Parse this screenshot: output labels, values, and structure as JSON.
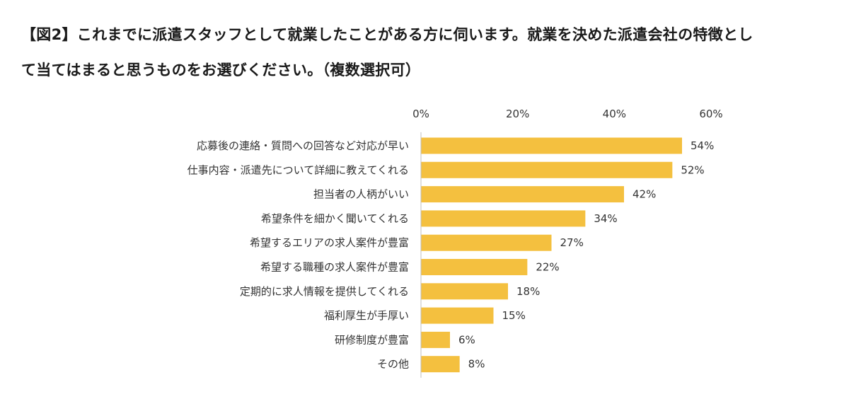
{
  "title": {
    "line1": "【図2】これまでに派遣スタッフとして就業したことがある方に伺います。就業を決めた派遣会社の特徴とし",
    "line2": "て当てはまると思うものをお選びください。（複数選択可）"
  },
  "colors": {
    "bar": "#F4C03F",
    "axis": "#BFBFBF"
  },
  "chart_data": {
    "type": "bar",
    "orientation": "horizontal",
    "categories": [
      "応募後の連絡・質問への回答など対応が早い",
      "仕事内容・派遣先について詳細に教えてくれる",
      "担当者の人柄がいい",
      "希望条件を細かく聞いてくれる",
      "希望するエリアの求人案件が豊富",
      "希望する職種の求人案件が豊富",
      "定期的に求人情報を提供してくれる",
      "福利厚生が手厚い",
      "研修制度が豊富",
      "その他"
    ],
    "values": [
      54,
      52,
      42,
      34,
      27,
      22,
      18,
      15,
      6,
      8
    ],
    "value_labels": [
      "54%",
      "52%",
      "42%",
      "34%",
      "27%",
      "22%",
      "18%",
      "15%",
      "6%",
      "8%"
    ],
    "xlim": [
      0,
      60
    ],
    "x_ticks": [
      0,
      20,
      40,
      60
    ],
    "x_tick_labels": [
      "0%",
      "20%",
      "40%",
      "60%"
    ],
    "x_axis_position": "top",
    "grid": false,
    "legend": "none"
  }
}
